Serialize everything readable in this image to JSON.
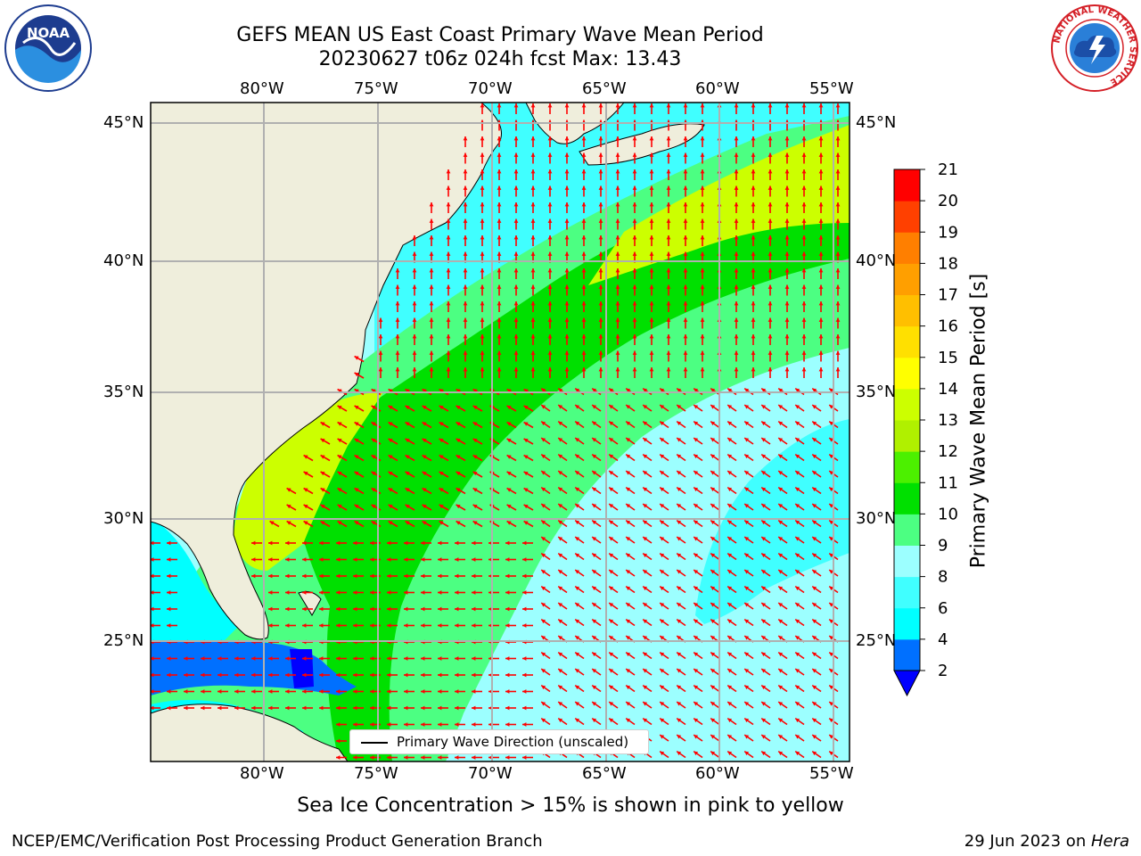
{
  "header": {
    "title_line1": "GEFS MEAN US East Coast Primary Wave Mean Period",
    "title_line2": "20230627 t06z 024h fcst   Max: 13.43"
  },
  "logos": {
    "left": {
      "icon": "noaa-logo-icon",
      "text": "NOAA"
    },
    "right": {
      "icon": "nws-logo-icon",
      "ring_text": "NATIONAL WEATHER SERVICE"
    }
  },
  "map": {
    "lon_ticks_top": [
      "80°W",
      "75°W",
      "70°W",
      "65°W",
      "60°W",
      "55°W"
    ],
    "lon_ticks_bottom": [
      "80°W",
      "75°W",
      "70°W",
      "65°W",
      "60°W",
      "55°W"
    ],
    "lat_ticks_left": [
      "45°N",
      "40°N",
      "35°N",
      "30°N",
      "25°N"
    ],
    "lat_ticks_right": [
      "45°N",
      "40°N",
      "35°N",
      "30°N",
      "25°N"
    ],
    "land_color": "#efeedc",
    "arrow_color": "#ff0000",
    "legend_label": "Primary Wave Direction (unscaled)"
  },
  "colorbar": {
    "title": "Primary Wave Mean Period [s]",
    "tick_labels": [
      "2",
      "4",
      "6",
      "8",
      "9",
      "10",
      "11",
      "12",
      "13",
      "14",
      "15",
      "16",
      "17",
      "18",
      "19",
      "20",
      "21"
    ],
    "colors": [
      "#0070ff",
      "#00ffff",
      "#40ffff",
      "#9cffff",
      "#4cff82",
      "#00e000",
      "#4cf000",
      "#b0f000",
      "#ccff00",
      "#ffff00",
      "#ffe000",
      "#ffbf00",
      "#ff9f00",
      "#ff7f00",
      "#ff4000",
      "#ff0000"
    ],
    "extend_low_color": "#0000ff"
  },
  "subtitle": "Sea Ice Concentration > 15% is shown in pink to yellow",
  "footer": {
    "left": "NCEP/EMC/Verification Post Processing Product Generation Branch",
    "right_date": "29 Jun 2023 on ",
    "right_host": "Hera"
  }
}
